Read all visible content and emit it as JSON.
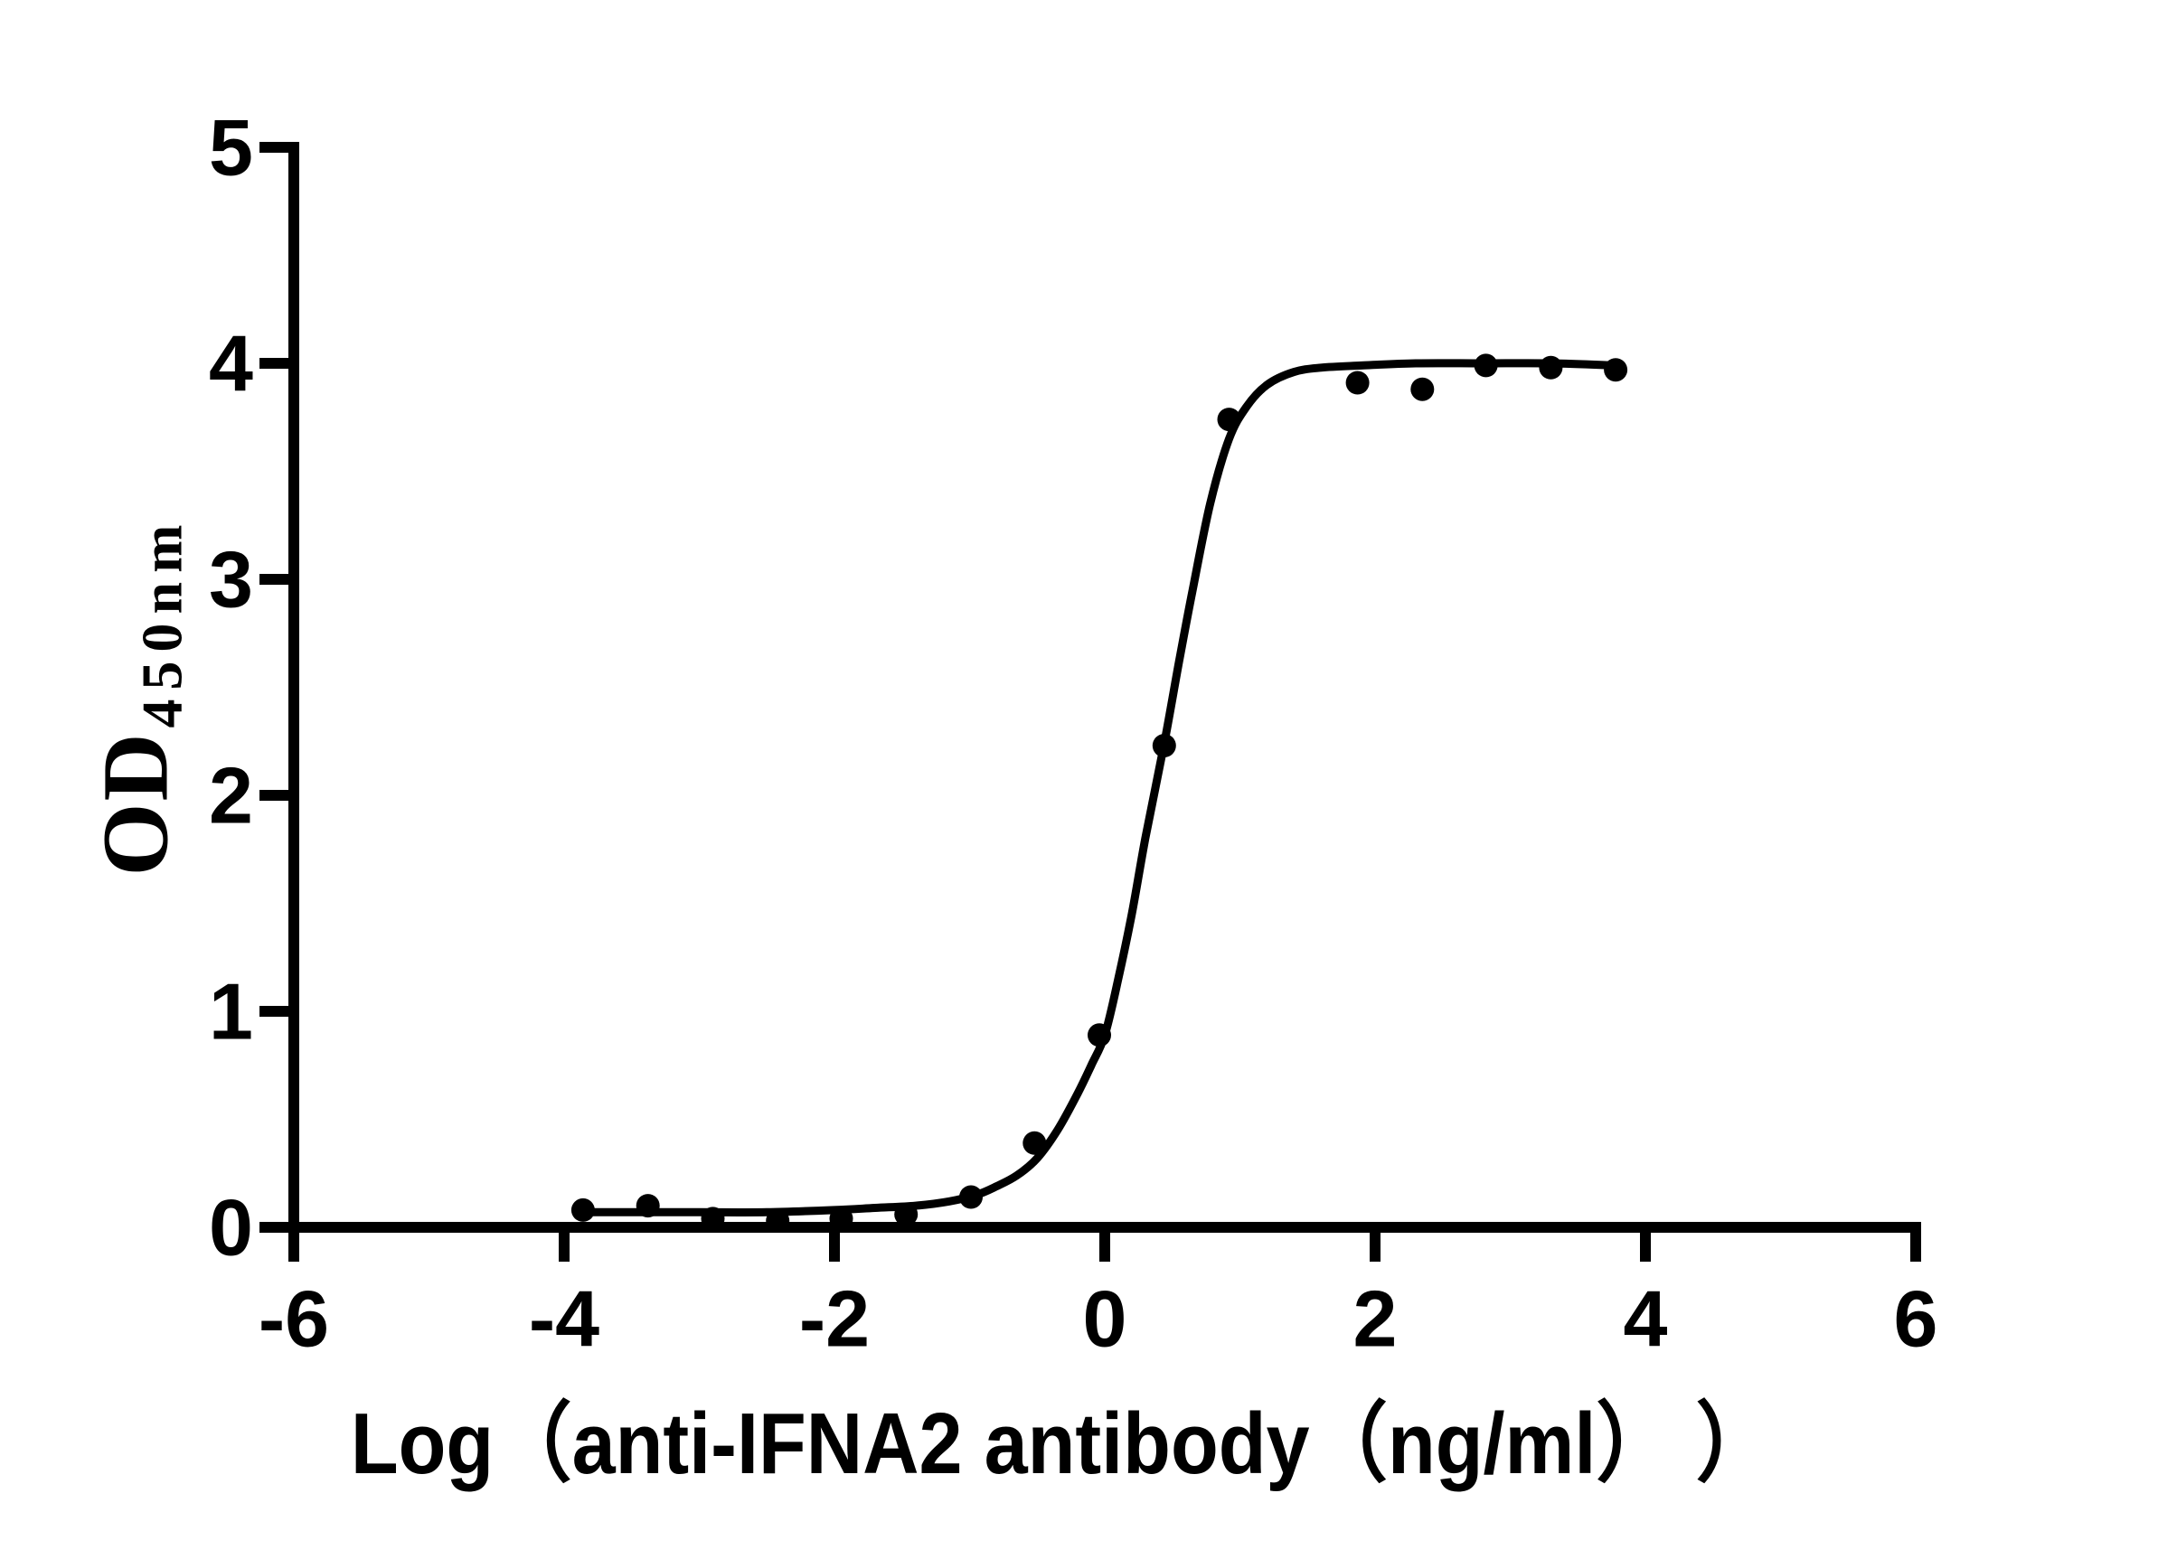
{
  "chart_data": {
    "type": "scatter",
    "title": "",
    "xlabel": "Log（anti-IFNA2 antibody（ng/ml） ）",
    "ylabel": "OD",
    "ylabel_subscript": "450nm",
    "xlim": [
      -6,
      6
    ],
    "ylim": [
      0,
      5
    ],
    "x_ticks": [
      -6,
      -4,
      -2,
      0,
      2,
      4,
      6
    ],
    "y_ticks": [
      0,
      1,
      2,
      3,
      4,
      5
    ],
    "grid": false,
    "legend": "none",
    "background_color": "#ffffff",
    "axis_color": "#000000",
    "marker_color": "#000000",
    "curve_color": "#000000",
    "series": [
      {
        "name": "measured-od-points",
        "type": "scatter",
        "x": [
          -3.86,
          -3.38,
          -2.9,
          -2.42,
          -1.95,
          -1.47,
          -0.99,
          -0.52,
          -0.04,
          0.44,
          0.92,
          1.87,
          2.35,
          2.82,
          3.3,
          3.78
        ],
        "y": [
          0.08,
          0.1,
          0.04,
          0.03,
          0.04,
          0.06,
          0.14,
          0.39,
          0.89,
          2.23,
          3.74,
          3.91,
          3.88,
          3.99,
          3.98,
          3.97
        ]
      },
      {
        "name": "sigmoidal-4pl-fit-curve",
        "type": "line",
        "x": [
          -3.86,
          -3.5,
          -3.0,
          -2.5,
          -2.0,
          -1.7,
          -1.4,
          -1.15,
          -0.95,
          -0.8,
          -0.65,
          -0.5,
          -0.35,
          -0.2,
          -0.1,
          0,
          0.1,
          0.2,
          0.3,
          0.44,
          0.55,
          0.65,
          0.78,
          0.92,
          1.05,
          1.2,
          1.4,
          1.6,
          1.9,
          2.3,
          2.8,
          3.3,
          3.78
        ],
        "y": [
          0.07,
          0.07,
          0.07,
          0.07,
          0.08,
          0.09,
          0.1,
          0.12,
          0.15,
          0.19,
          0.24,
          0.32,
          0.45,
          0.62,
          0.75,
          0.89,
          1.15,
          1.45,
          1.8,
          2.24,
          2.62,
          2.95,
          3.35,
          3.65,
          3.8,
          3.9,
          3.96,
          3.98,
          3.99,
          4.0,
          4.0,
          4.0,
          3.99
        ]
      }
    ]
  }
}
